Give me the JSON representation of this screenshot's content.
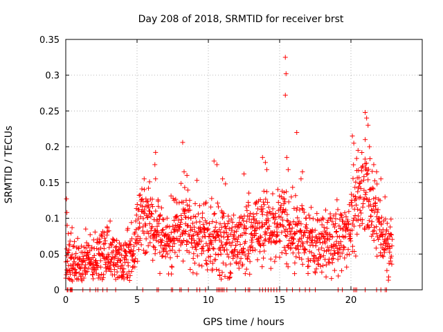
{
  "chart_data": {
    "type": "scatter",
    "title": "Day 208 of 2018, SRMTID for receiver brst",
    "xlabel": "GPS time / hours",
    "ylabel": "SRMTID / TECUs",
    "xlim": [
      0,
      25
    ],
    "ylim": [
      0,
      0.35
    ],
    "xticks": [
      {
        "value": 0,
        "label": "0"
      },
      {
        "value": 5,
        "label": "5"
      },
      {
        "value": 10,
        "label": "10"
      },
      {
        "value": 15,
        "label": "15"
      },
      {
        "value": 20,
        "label": "20"
      }
    ],
    "yticks": [
      {
        "value": 0,
        "label": "0"
      },
      {
        "value": 0.05,
        "label": "0.05"
      },
      {
        "value": 0.1,
        "label": "0.1"
      },
      {
        "value": 0.15,
        "label": "0.15"
      },
      {
        "value": 0.2,
        "label": "0.2"
      },
      {
        "value": 0.25,
        "label": "0.25"
      },
      {
        "value": 0.3,
        "label": "0.3"
      },
      {
        "value": 0.35,
        "label": "0.35"
      }
    ],
    "grid": true,
    "marker": "+",
    "color": "#ff0000",
    "series": [
      {
        "name": "SRMTID",
        "profile": [
          [
            0.0,
            0.045
          ],
          [
            1.0,
            0.04
          ],
          [
            2.0,
            0.045
          ],
          [
            3.0,
            0.05
          ],
          [
            3.8,
            0.038
          ],
          [
            4.6,
            0.05
          ],
          [
            5.2,
            0.1
          ],
          [
            6.0,
            0.09
          ],
          [
            7.0,
            0.07
          ],
          [
            8.2,
            0.09
          ],
          [
            9.0,
            0.075
          ],
          [
            10.0,
            0.07
          ],
          [
            10.8,
            0.075
          ],
          [
            11.5,
            0.06
          ],
          [
            12.5,
            0.075
          ],
          [
            13.7,
            0.09
          ],
          [
            14.5,
            0.085
          ],
          [
            15.3,
            0.09
          ],
          [
            16.0,
            0.085
          ],
          [
            17.0,
            0.065
          ],
          [
            18.0,
            0.065
          ],
          [
            19.0,
            0.07
          ],
          [
            19.8,
            0.08
          ],
          [
            20.5,
            0.13
          ],
          [
            21.0,
            0.15
          ],
          [
            21.5,
            0.11
          ],
          [
            22.5,
            0.065
          ],
          [
            22.9,
            0.06
          ]
        ],
        "spread": 0.022,
        "points": [
          [
            0.05,
            0.127
          ],
          [
            0.08,
            0.108
          ],
          [
            0.1,
            0.09
          ],
          [
            0.3,
            0.068
          ],
          [
            1.4,
            0.085
          ],
          [
            2.9,
            0.088
          ],
          [
            5.5,
            0.155
          ],
          [
            5.8,
            0.142
          ],
          [
            6.3,
            0.192
          ],
          [
            6.25,
            0.175
          ],
          [
            6.3,
            0.155
          ],
          [
            7.6,
            0.125
          ],
          [
            8.2,
            0.206
          ],
          [
            8.3,
            0.165
          ],
          [
            8.5,
            0.16
          ],
          [
            9.2,
            0.153
          ],
          [
            10.4,
            0.18
          ],
          [
            10.6,
            0.175
          ],
          [
            11.0,
            0.155
          ],
          [
            11.2,
            0.148
          ],
          [
            12.5,
            0.162
          ],
          [
            13.8,
            0.185
          ],
          [
            14.0,
            0.178
          ],
          [
            14.1,
            0.168
          ],
          [
            15.4,
            0.325
          ],
          [
            15.45,
            0.302
          ],
          [
            15.4,
            0.272
          ],
          [
            15.5,
            0.185
          ],
          [
            15.6,
            0.168
          ],
          [
            16.2,
            0.22
          ],
          [
            16.6,
            0.165
          ],
          [
            16.5,
            0.155
          ],
          [
            20.1,
            0.215
          ],
          [
            20.2,
            0.205
          ],
          [
            20.5,
            0.195
          ],
          [
            21.0,
            0.248
          ],
          [
            21.1,
            0.24
          ],
          [
            21.2,
            0.23
          ],
          [
            21.0,
            0.21
          ],
          [
            21.3,
            0.2
          ],
          [
            21.6,
            0.175
          ],
          [
            21.8,
            0.165
          ],
          [
            22.1,
            0.155
          ],
          [
            10.8,
            0.02
          ],
          [
            10.9,
            0.015
          ],
          [
            3.6,
            0.025
          ],
          [
            3.9,
            0.02
          ]
        ],
        "zero_marks": [
          0.1,
          0.15,
          0.3,
          0.35,
          0.4,
          0.45,
          1.2,
          1.7,
          2.1,
          2.25,
          2.6,
          2.9,
          3.5,
          5.4,
          6.4,
          6.5,
          7.4,
          7.5,
          8.0,
          8.1,
          8.6,
          9.2,
          9.4,
          9.8,
          10.6,
          10.7,
          10.8,
          10.9,
          11.0,
          11.1,
          11.3,
          11.9,
          12.6,
          12.8,
          12.9,
          13.6,
          13.8,
          14.0,
          14.2,
          14.4,
          14.6,
          14.8,
          15.0,
          15.5,
          15.9,
          16.4,
          16.8,
          17.1,
          17.5,
          19.1,
          19.4,
          20.2,
          20.3,
          20.4,
          21.0,
          21.8,
          22.1,
          22.4,
          22.5
        ]
      }
    ]
  }
}
